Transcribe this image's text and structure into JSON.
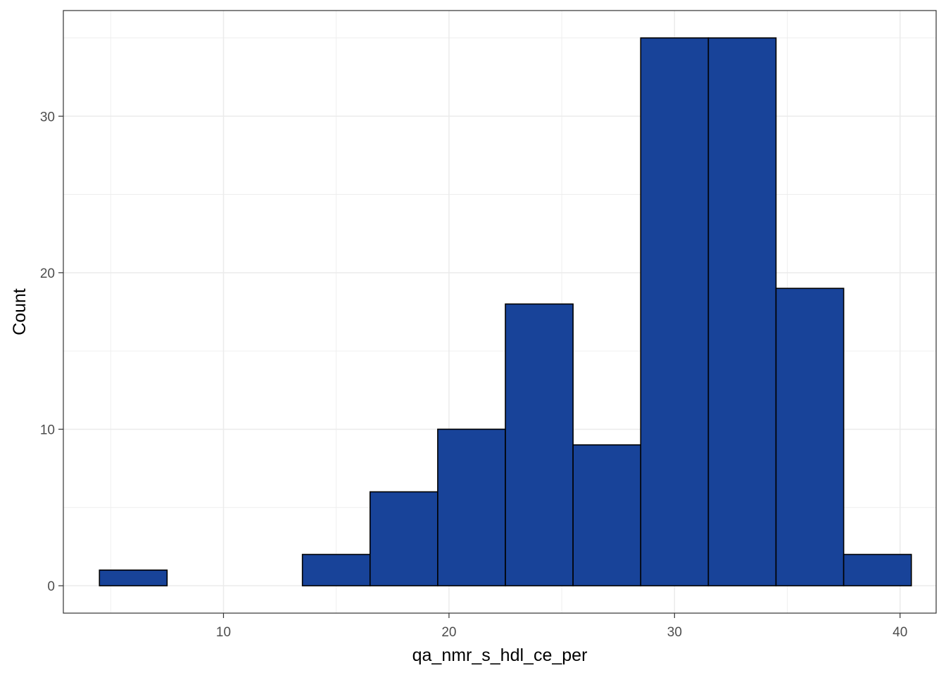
{
  "chart_data": {
    "type": "bar",
    "title": "",
    "xlabel": "qa_nmr_s_hdl_ce_per",
    "ylabel": "Count",
    "bin_width": 3,
    "bins": [
      {
        "x_start": 4.5,
        "x_end": 7.5,
        "count": 1
      },
      {
        "x_start": 7.5,
        "x_end": 10.5,
        "count": 0
      },
      {
        "x_start": 10.5,
        "x_end": 13.5,
        "count": 0
      },
      {
        "x_start": 13.5,
        "x_end": 16.5,
        "count": 2
      },
      {
        "x_start": 16.5,
        "x_end": 19.5,
        "count": 6
      },
      {
        "x_start": 19.5,
        "x_end": 22.5,
        "count": 10
      },
      {
        "x_start": 22.5,
        "x_end": 25.5,
        "count": 18
      },
      {
        "x_start": 25.5,
        "x_end": 28.5,
        "count": 9
      },
      {
        "x_start": 28.5,
        "x_end": 31.5,
        "count": 35
      },
      {
        "x_start": 31.5,
        "x_end": 34.5,
        "count": 35
      },
      {
        "x_start": 34.5,
        "x_end": 37.5,
        "count": 19
      },
      {
        "x_start": 37.5,
        "x_end": 40.5,
        "count": 2
      }
    ],
    "x_ticks": [
      10,
      20,
      30,
      40
    ],
    "x_tick_labels": [
      "10",
      "20",
      "30",
      "40"
    ],
    "y_ticks": [
      0,
      10,
      20,
      30
    ],
    "y_tick_labels": [
      "0",
      "10",
      "20",
      "30"
    ],
    "xlim": [
      2.9,
      41.6
    ],
    "ylim": [
      -1.75,
      36.75
    ],
    "grid": true,
    "colors": {
      "bar_fill": "#184399",
      "bar_stroke": "#000000",
      "grid": "#ebebeb",
      "panel_border": "#333333"
    }
  }
}
